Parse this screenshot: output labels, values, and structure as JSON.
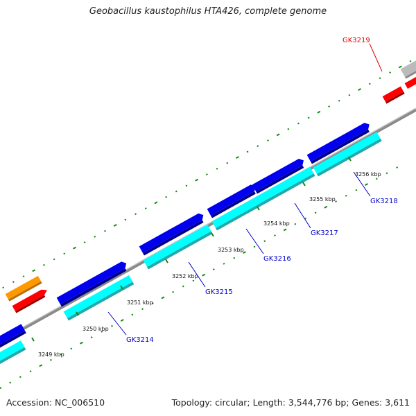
{
  "title": "Geobacillus kaustophilus HTA426, complete genome",
  "footer": {
    "accession": "Accession: NC_006510",
    "summary": "Topology: circular; Length: 3,544,776 bp; Genes: 3,611"
  },
  "colors": {
    "forward_cds": "#0000ee",
    "forward_cds_shadow": "#00008a",
    "reverse_cds": "#00ffff",
    "reverse_cds_shadow": "#22aaaa",
    "rna": "#ff0000",
    "other": "#ff9900",
    "gray": "#bbbbbb",
    "backbone": "#888888",
    "gc_dots": "#118811",
    "label": "#0000cc",
    "label_highlight": "#e00000"
  },
  "tick_labels": [
    "3249 kbp",
    "3250 kbp",
    "3251 kbp",
    "3252 kbp",
    "3253 kbp",
    "3254 kbp",
    "3255 kbp",
    "3256 kbp"
  ],
  "gene_labels": [
    {
      "name": "GK3214",
      "highlight": false
    },
    {
      "name": "GK3215",
      "highlight": false
    },
    {
      "name": "GK3216",
      "highlight": false
    },
    {
      "name": "GK3217",
      "highlight": false
    },
    {
      "name": "GK3218",
      "highlight": false
    },
    {
      "name": "GK3219",
      "highlight": true
    }
  ]
}
